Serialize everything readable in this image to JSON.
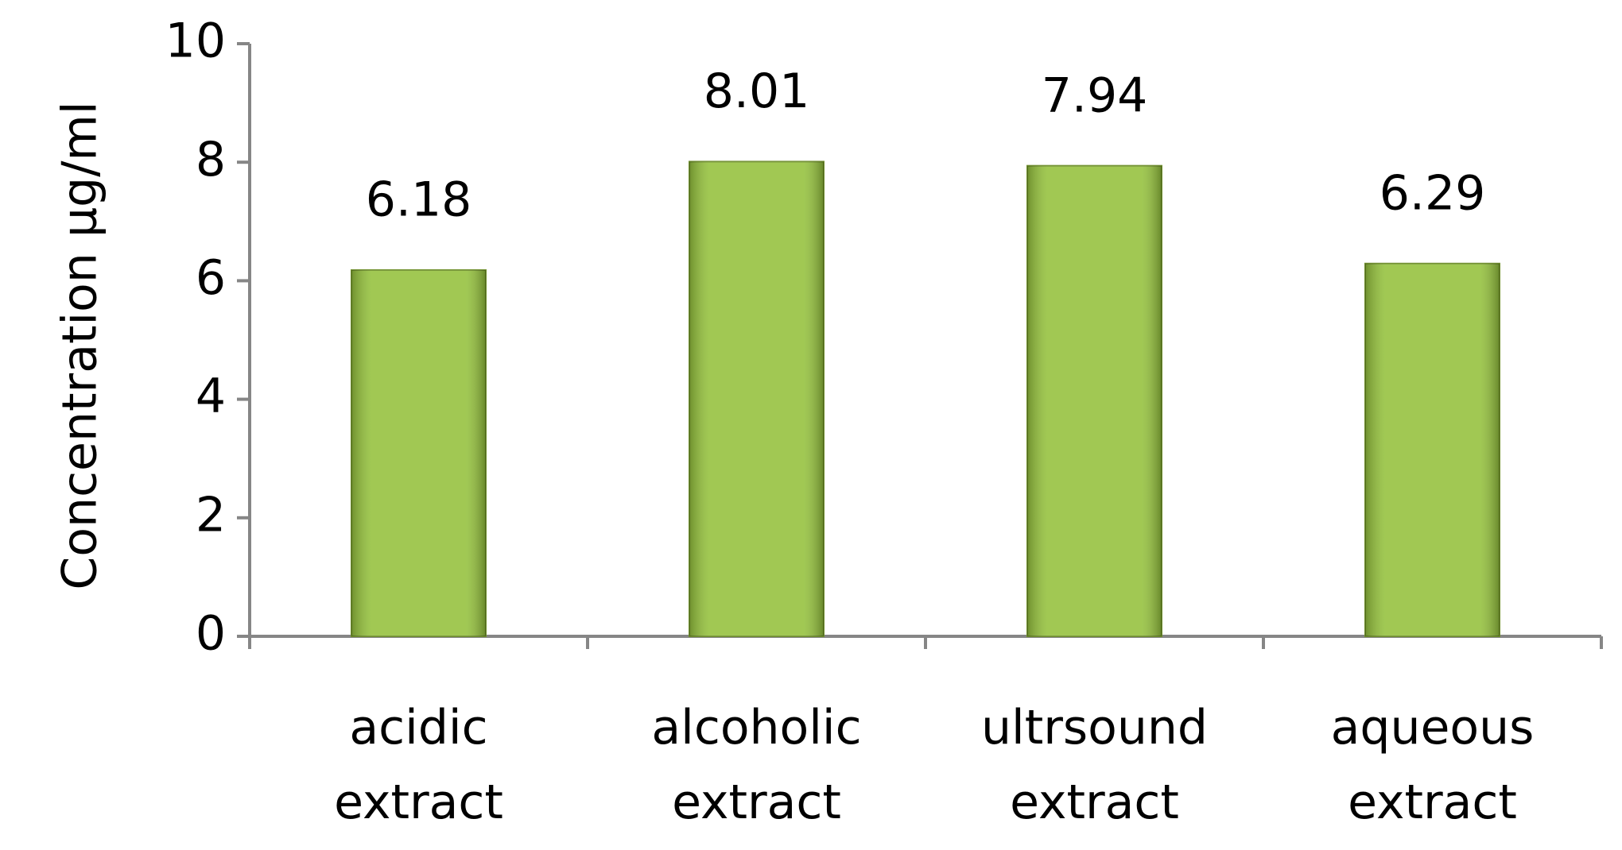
{
  "chart_data": {
    "type": "bar",
    "y_label": "Concentration µg/ml",
    "categories": [
      "acidic extract",
      "alcoholic extract",
      "ultrsound extract",
      "aqueous extract"
    ],
    "values": [
      6.18,
      8.01,
      7.94,
      6.29
    ],
    "color": "#94c13c",
    "ylim": [
      0,
      10
    ],
    "yticks": [
      0,
      2,
      4,
      6,
      8,
      10
    ],
    "grid": false
  }
}
